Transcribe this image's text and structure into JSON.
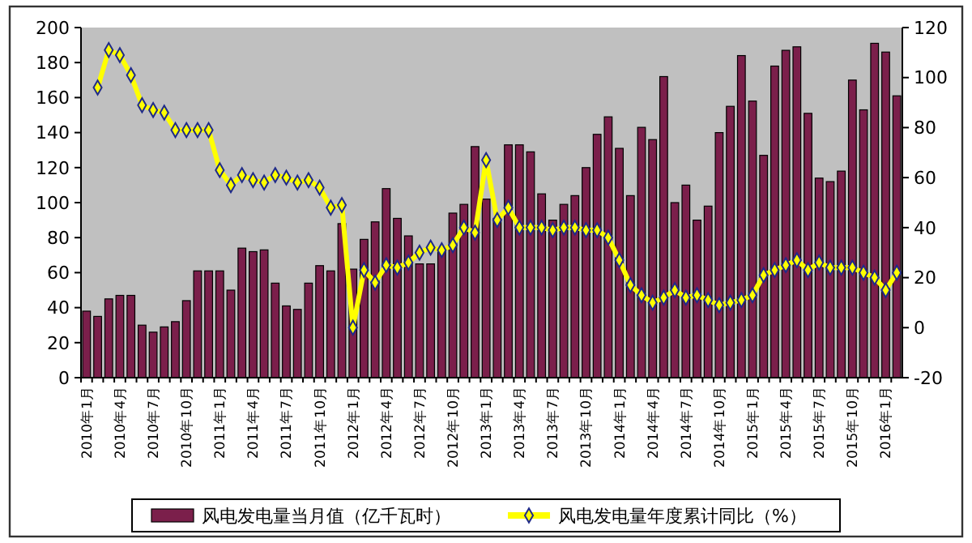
{
  "chart_data": {
    "type": "bar",
    "categories": [
      "2010年1月",
      null,
      null,
      "2010年4月",
      null,
      null,
      "2010年7月",
      null,
      null,
      "2010年10月",
      null,
      null,
      "2011年1月",
      null,
      null,
      "2011年4月",
      null,
      null,
      "2011年7月",
      null,
      null,
      "2011年10月",
      null,
      null,
      "2012年1月",
      null,
      null,
      "2012年4月",
      null,
      null,
      "2012年7月",
      null,
      null,
      "2012年10月",
      null,
      null,
      "2013年1月",
      null,
      null,
      "2013年4月",
      null,
      null,
      "2013年7月",
      null,
      null,
      "2013年10月",
      null,
      null,
      "2014年1月",
      null,
      null,
      "2014年4月",
      null,
      null,
      "2014年7月",
      null,
      null,
      "2014年10月",
      null,
      null,
      "2015年1月",
      null,
      null,
      "2015年4月",
      null,
      null,
      "2015年7月",
      null,
      null,
      "2015年10月",
      null,
      null,
      "2016年1月",
      null
    ],
    "series": [
      {
        "name": "风电发电量当月值（亿千瓦时）",
        "color": "#7b1f4b",
        "values": [
          38,
          35,
          45,
          47,
          47,
          30,
          26,
          29,
          32,
          44,
          61,
          61,
          61,
          50,
          74,
          72,
          73,
          54,
          41,
          39,
          54,
          64,
          61,
          88,
          62,
          79,
          89,
          108,
          91,
          81,
          65,
          65,
          73,
          94,
          99,
          132,
          102,
          91,
          133,
          133,
          129,
          105,
          90,
          99,
          104,
          120,
          139,
          149,
          131,
          104,
          143,
          136,
          172,
          100,
          110,
          90,
          98,
          140,
          155,
          184,
          158,
          127,
          178,
          187,
          189,
          151,
          114,
          112,
          118,
          170,
          153,
          191,
          186,
          161
        ]
      },
      {
        "name": "风电发电量年度累计同比（%）",
        "type": "line",
        "axis": "y2",
        "color": "#ffff00",
        "marker": "diamond",
        "values": [
          null,
          96,
          111,
          109,
          101,
          89,
          87,
          86,
          79,
          79,
          79,
          79,
          63,
          57,
          61,
          59,
          58,
          61,
          60,
          58,
          59,
          56,
          48,
          49,
          0,
          23,
          18,
          25,
          24,
          26,
          30,
          32,
          31,
          33,
          40,
          38,
          67,
          43,
          48,
          40,
          40,
          40,
          39,
          40,
          40,
          39,
          39,
          36,
          27,
          17,
          13,
          10,
          12,
          15,
          12,
          13,
          11,
          9,
          10,
          11,
          13,
          21,
          23,
          25,
          27,
          23,
          26,
          24,
          24,
          24,
          22,
          20,
          15,
          22
        ]
      }
    ],
    "ylim": [
      0,
      200
    ],
    "yticks": [
      0,
      20,
      40,
      60,
      80,
      100,
      120,
      140,
      160,
      180,
      200
    ],
    "y2lim": [
      -20,
      120
    ],
    "y2ticks": [
      -20,
      0,
      20,
      40,
      60,
      80,
      100,
      120
    ],
    "grid": false,
    "legend": "bottom"
  }
}
